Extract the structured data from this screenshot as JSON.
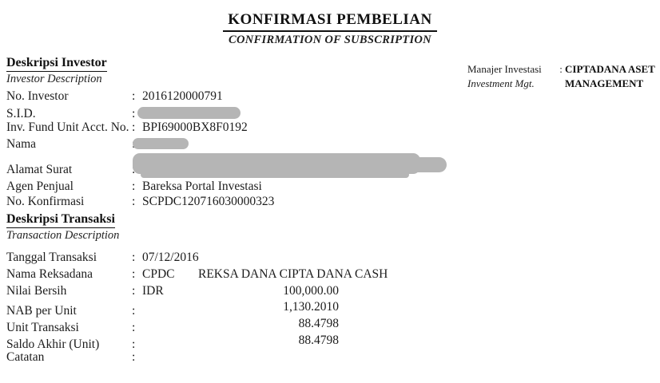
{
  "colon": ":",
  "title": {
    "main": "KONFIRMASI PEMBELIAN",
    "sub": "CONFIRMATION OF SUBSCRIPTION"
  },
  "manager": {
    "label_id": "Manajer Investasi",
    "label_en": "Investment Mgt.",
    "value": "CIPTADANA ASET MANAGEMENT"
  },
  "investor": {
    "heading_id": "Deskripsi Investor",
    "heading_en": "Investor Description",
    "rows": [
      {
        "label": "No. Investor",
        "value": "2016120000791"
      },
      {
        "label": "S.I.D.",
        "value": "",
        "redacted": true
      },
      {
        "label": "Inv. Fund Unit Acct. No.",
        "value": "BPI69000BX8F0192"
      },
      {
        "label": "Nama",
        "value": "",
        "redacted": true
      },
      {
        "label": "Alamat Surat",
        "value": "",
        "redacted": true
      },
      {
        "label": "Agen Penjual",
        "value": "Bareksa Portal Investasi"
      },
      {
        "label": "No. Konfirmasi",
        "value": "SCPDC120716030000323"
      }
    ]
  },
  "transaction": {
    "heading_id": "Deskripsi Transaksi",
    "heading_en": "Transaction Description",
    "rows": [
      {
        "label": "Tanggal Transaksi",
        "value": "07/12/2016"
      },
      {
        "label": "Nama Reksadana",
        "code": "CPDC",
        "name": "REKSA DANA CIPTA DANA CASH"
      },
      {
        "label": "Nilai Bersih",
        "currency": "IDR",
        "amount": "100,000.00"
      },
      {
        "label": "NAB per Unit",
        "currency": "",
        "amount": "1,130.2010"
      },
      {
        "label": "Unit Transaksi",
        "currency": "",
        "amount": "88.4798"
      },
      {
        "label": "Saldo Akhir (Unit)",
        "currency": "",
        "amount": "88.4798"
      },
      {
        "label": "Catatan",
        "value": ""
      }
    ]
  }
}
